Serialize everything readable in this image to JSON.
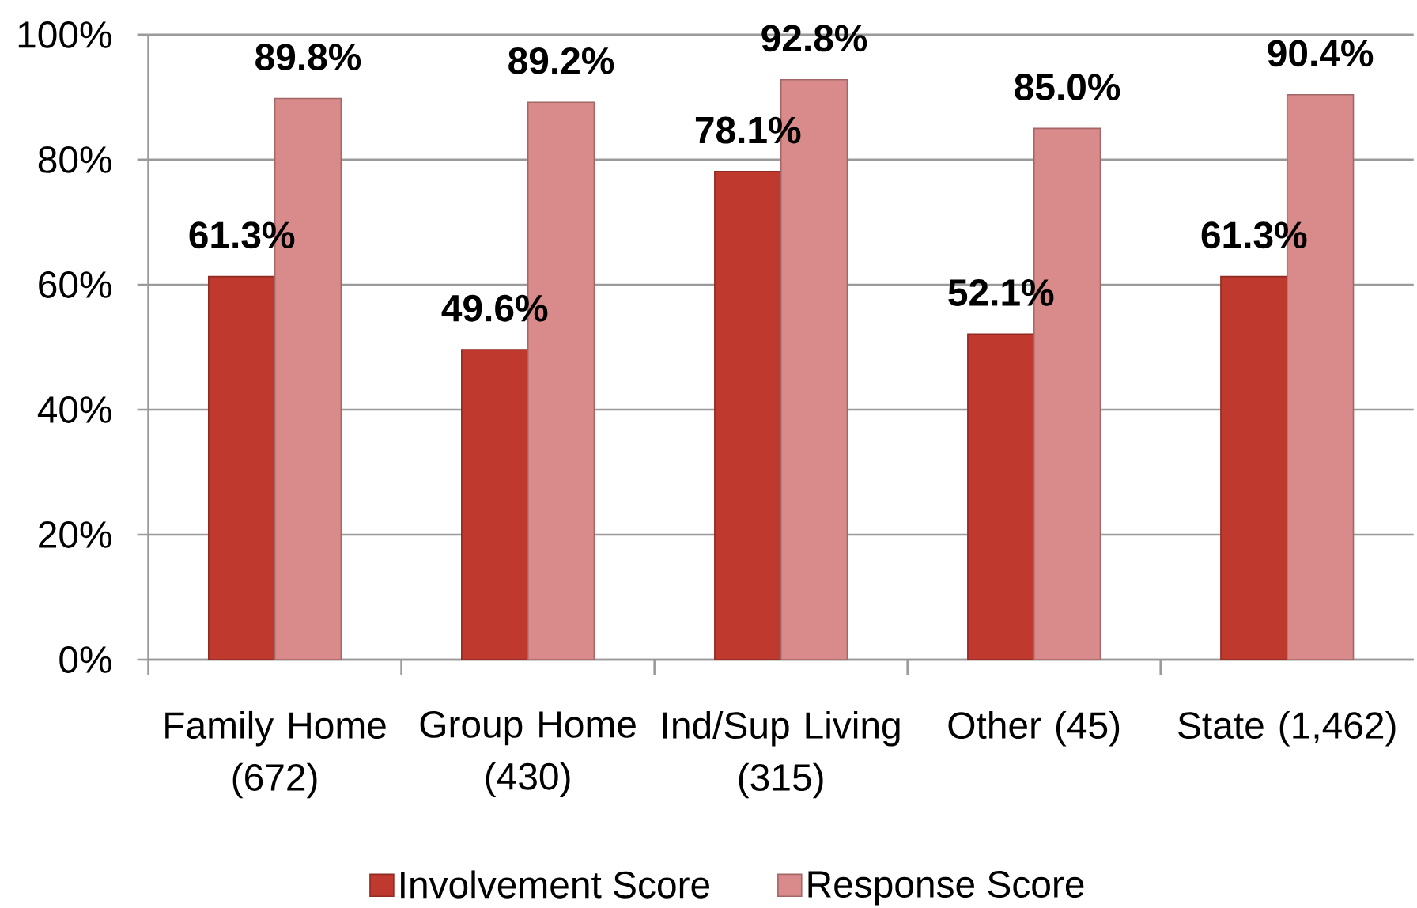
{
  "chart_data": {
    "type": "bar",
    "categories": [
      "Family Home (672)",
      "Group Home (430)",
      "Ind/Sup Living (315)",
      "Other (45)",
      "State (1,462)"
    ],
    "series": [
      {
        "name": "Involvement Score",
        "color": "#c0392f",
        "values": [
          61.3,
          49.6,
          78.1,
          52.1,
          61.3
        ],
        "value_labels": [
          "61.3%",
          "49.6%",
          "78.1%",
          "52.1%",
          "61.3%"
        ]
      },
      {
        "name": "Response Score",
        "color": "#d98a8a",
        "values": [
          89.8,
          89.2,
          92.8,
          85.0,
          90.4
        ],
        "value_labels": [
          "89.8%",
          "89.2%",
          "92.8%",
          "85.0%",
          "90.4%"
        ]
      }
    ],
    "ylim": [
      0,
      100
    ],
    "yticks": [
      {
        "value": 0,
        "label": "0%"
      },
      {
        "value": 20,
        "label": "20%"
      },
      {
        "value": 40,
        "label": "40%"
      },
      {
        "value": 60,
        "label": "60%"
      },
      {
        "value": 80,
        "label": "80%"
      },
      {
        "value": 100,
        "label": "100%"
      }
    ],
    "grid": "y",
    "legend": "bottom"
  }
}
